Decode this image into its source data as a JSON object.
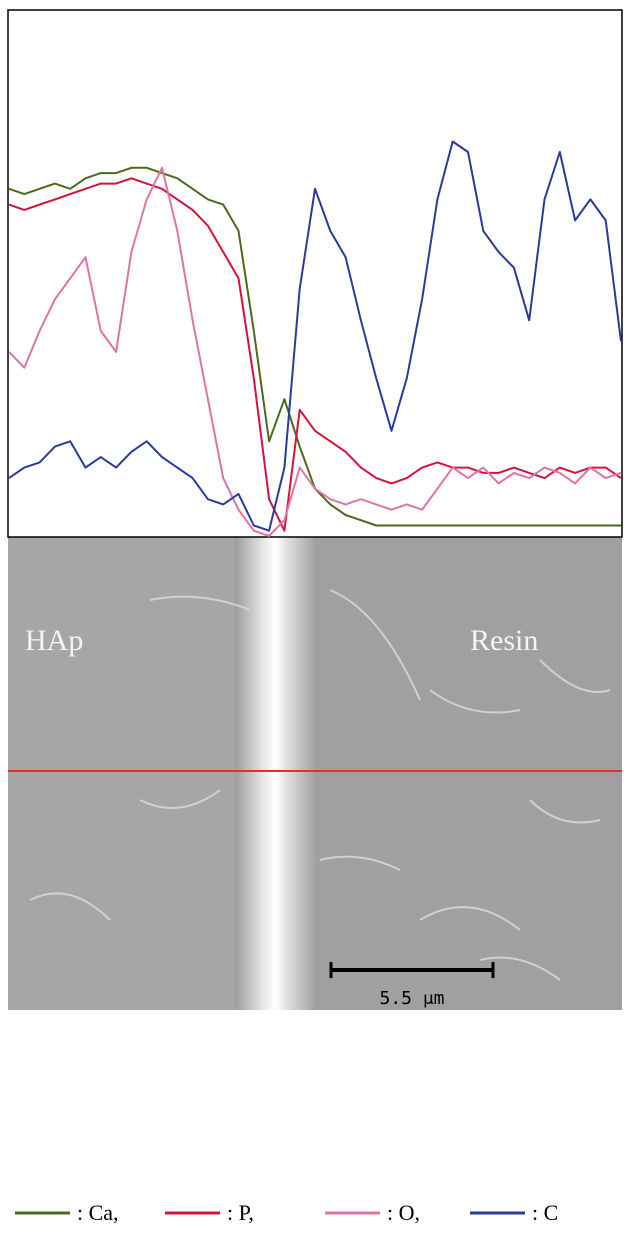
{
  "chart_data": {
    "type": "line",
    "ylim": [
      0,
      100
    ],
    "series": [
      {
        "name": ": Ca,",
        "color": "#4b6a1c",
        "values": [
          66,
          65,
          66,
          67,
          66,
          68,
          69,
          69,
          70,
          70,
          69,
          68,
          66,
          64,
          63,
          58,
          39,
          18,
          26,
          17,
          9,
          6,
          4,
          3,
          2,
          2,
          2,
          2,
          2,
          2,
          2,
          2,
          2,
          2,
          2,
          2,
          2,
          2,
          2,
          2,
          2
        ]
      },
      {
        "name": ": P,",
        "color": "#d4123c",
        "values": [
          63,
          62,
          63,
          64,
          65,
          66,
          67,
          67,
          68,
          67,
          66,
          64,
          62,
          59,
          54,
          49,
          30,
          7,
          1,
          24,
          20,
          18,
          16,
          13,
          11,
          10,
          11,
          13,
          14,
          13,
          13,
          12,
          12,
          13,
          12,
          11,
          13,
          12,
          13,
          13,
          11
        ]
      },
      {
        "name": ": O,",
        "color": "#e072a4",
        "values": [
          35,
          32,
          39,
          45,
          49,
          53,
          39,
          35,
          54,
          64,
          70,
          58,
          41,
          26,
          11,
          5,
          1,
          0,
          3,
          13,
          9,
          7,
          6,
          7,
          6,
          5,
          6,
          5,
          9,
          13,
          11,
          13,
          10,
          12,
          11,
          13,
          12,
          10,
          13,
          11,
          12
        ]
      },
      {
        "name": ": C",
        "color": "#2a3a9c",
        "values": [
          11,
          13,
          14,
          17,
          18,
          13,
          15,
          13,
          16,
          18,
          15,
          13,
          11,
          7,
          6,
          8,
          2,
          1,
          13,
          47,
          66,
          58,
          53,
          41,
          30,
          20,
          30,
          45,
          64,
          75,
          73,
          58,
          54,
          51,
          41,
          64,
          73,
          60,
          64,
          60,
          37
        ]
      }
    ],
    "annotations": [
      "HAp",
      "Resin"
    ],
    "scale_bar_label": "5.5 μm"
  }
}
